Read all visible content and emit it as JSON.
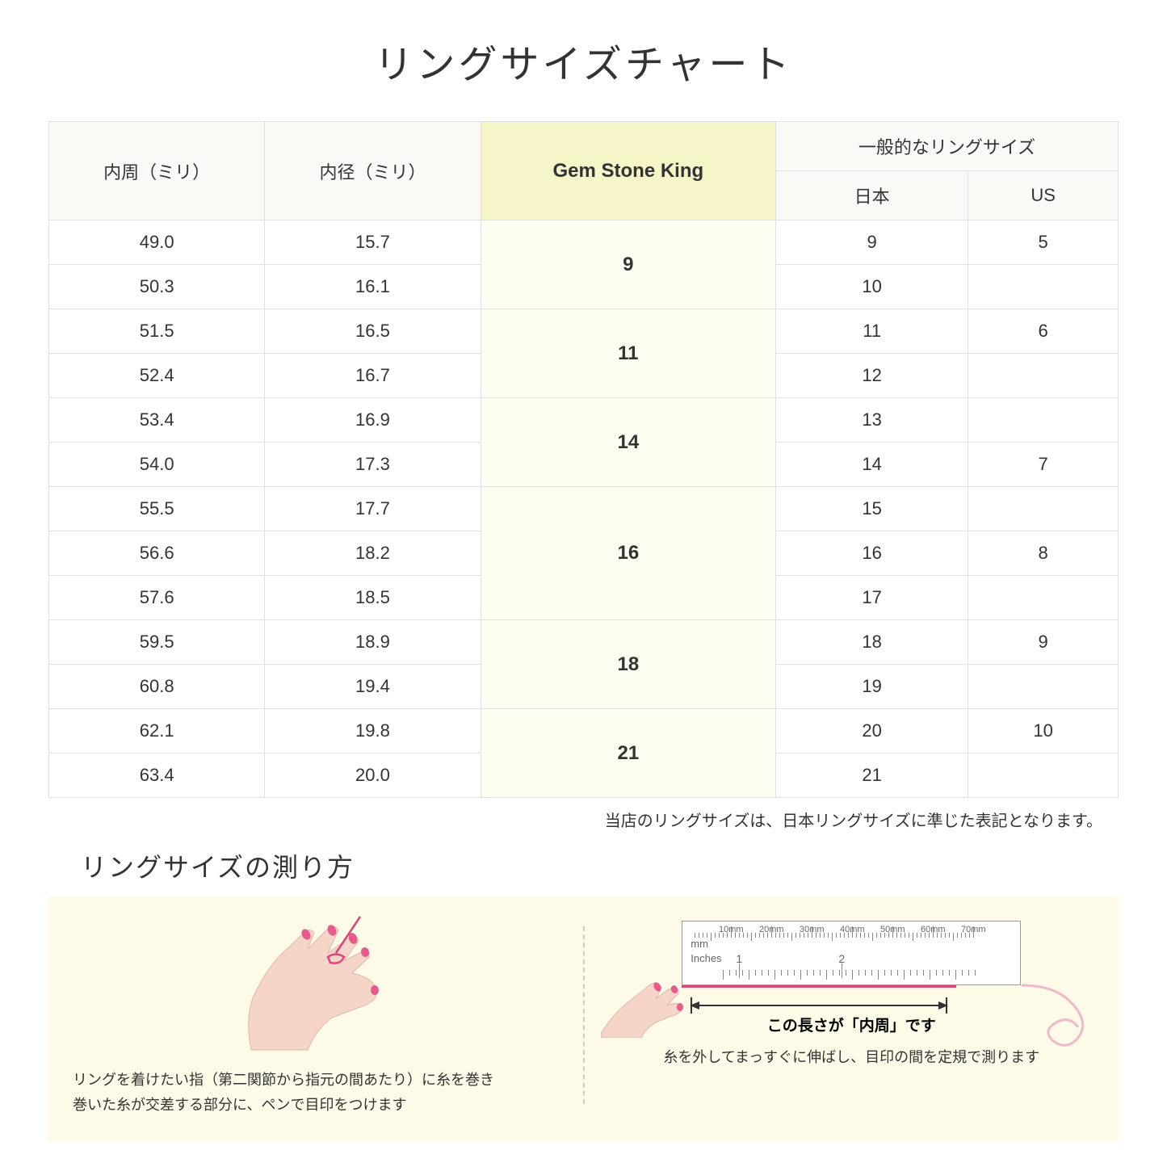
{
  "title": "リングサイズチャート",
  "table": {
    "headers": {
      "circumference": "内周（ミリ）",
      "diameter": "内径（ミリ）",
      "gsk": "Gem Stone King",
      "general": "一般的なリングサイズ",
      "japan": "日本",
      "us": "US"
    },
    "groups": [
      {
        "gsk": "9",
        "rows": [
          {
            "c": "49.0",
            "d": "15.7",
            "jp": "9",
            "us": "5"
          },
          {
            "c": "50.3",
            "d": "16.1",
            "jp": "10",
            "us": ""
          }
        ]
      },
      {
        "gsk": "11",
        "rows": [
          {
            "c": "51.5",
            "d": "16.5",
            "jp": "11",
            "us": "6"
          },
          {
            "c": "52.4",
            "d": "16.7",
            "jp": "12",
            "us": ""
          }
        ]
      },
      {
        "gsk": "14",
        "rows": [
          {
            "c": "53.4",
            "d": "16.9",
            "jp": "13",
            "us": ""
          },
          {
            "c": "54.0",
            "d": "17.3",
            "jp": "14",
            "us": "7"
          }
        ]
      },
      {
        "gsk": "16",
        "rows": [
          {
            "c": "55.5",
            "d": "17.7",
            "jp": "15",
            "us": ""
          },
          {
            "c": "56.6",
            "d": "18.2",
            "jp": "16",
            "us": "8"
          },
          {
            "c": "57.6",
            "d": "18.5",
            "jp": "17",
            "us": ""
          }
        ]
      },
      {
        "gsk": "18",
        "rows": [
          {
            "c": "59.5",
            "d": "18.9",
            "jp": "18",
            "us": "9"
          },
          {
            "c": "60.8",
            "d": "19.4",
            "jp": "19",
            "us": ""
          }
        ]
      },
      {
        "gsk": "21",
        "rows": [
          {
            "c": "62.1",
            "d": "19.8",
            "jp": "20",
            "us": "10"
          },
          {
            "c": "63.4",
            "d": "20.0",
            "jp": "21",
            "us": ""
          }
        ]
      }
    ]
  },
  "note": "当店のリングサイズは、日本リングサイズに準じた表記となります。",
  "howto": {
    "title": "リングサイズの測り方",
    "left_text_1": "リングを着けたい指（第二関節から指元の間あたり）に糸を巻き",
    "left_text_2": "巻いた糸が交差する部分に、ペンで目印をつけます",
    "right_measure_label": "この長さが「内周」です",
    "right_text": "糸を外してまっすぐに伸ばし、目印の間を定規で測ります",
    "ruler": {
      "mm_label": "mm",
      "in_label": "Inches",
      "mm_ticks": [
        "10mm",
        "20mm",
        "30mm",
        "40mm",
        "50mm",
        "60mm",
        "70mm"
      ],
      "in_ticks": [
        "1",
        "2"
      ]
    }
  },
  "colors": {
    "header_bg": "#f9f9f5",
    "gsk_header_bg": "#f5f5c8",
    "gsk_cell_bg": "#fdfdf2",
    "howto_bg": "#fdfae8",
    "hand_skin": "#f5d5c8",
    "nail": "#e85a8a",
    "thread": "#d94878"
  }
}
